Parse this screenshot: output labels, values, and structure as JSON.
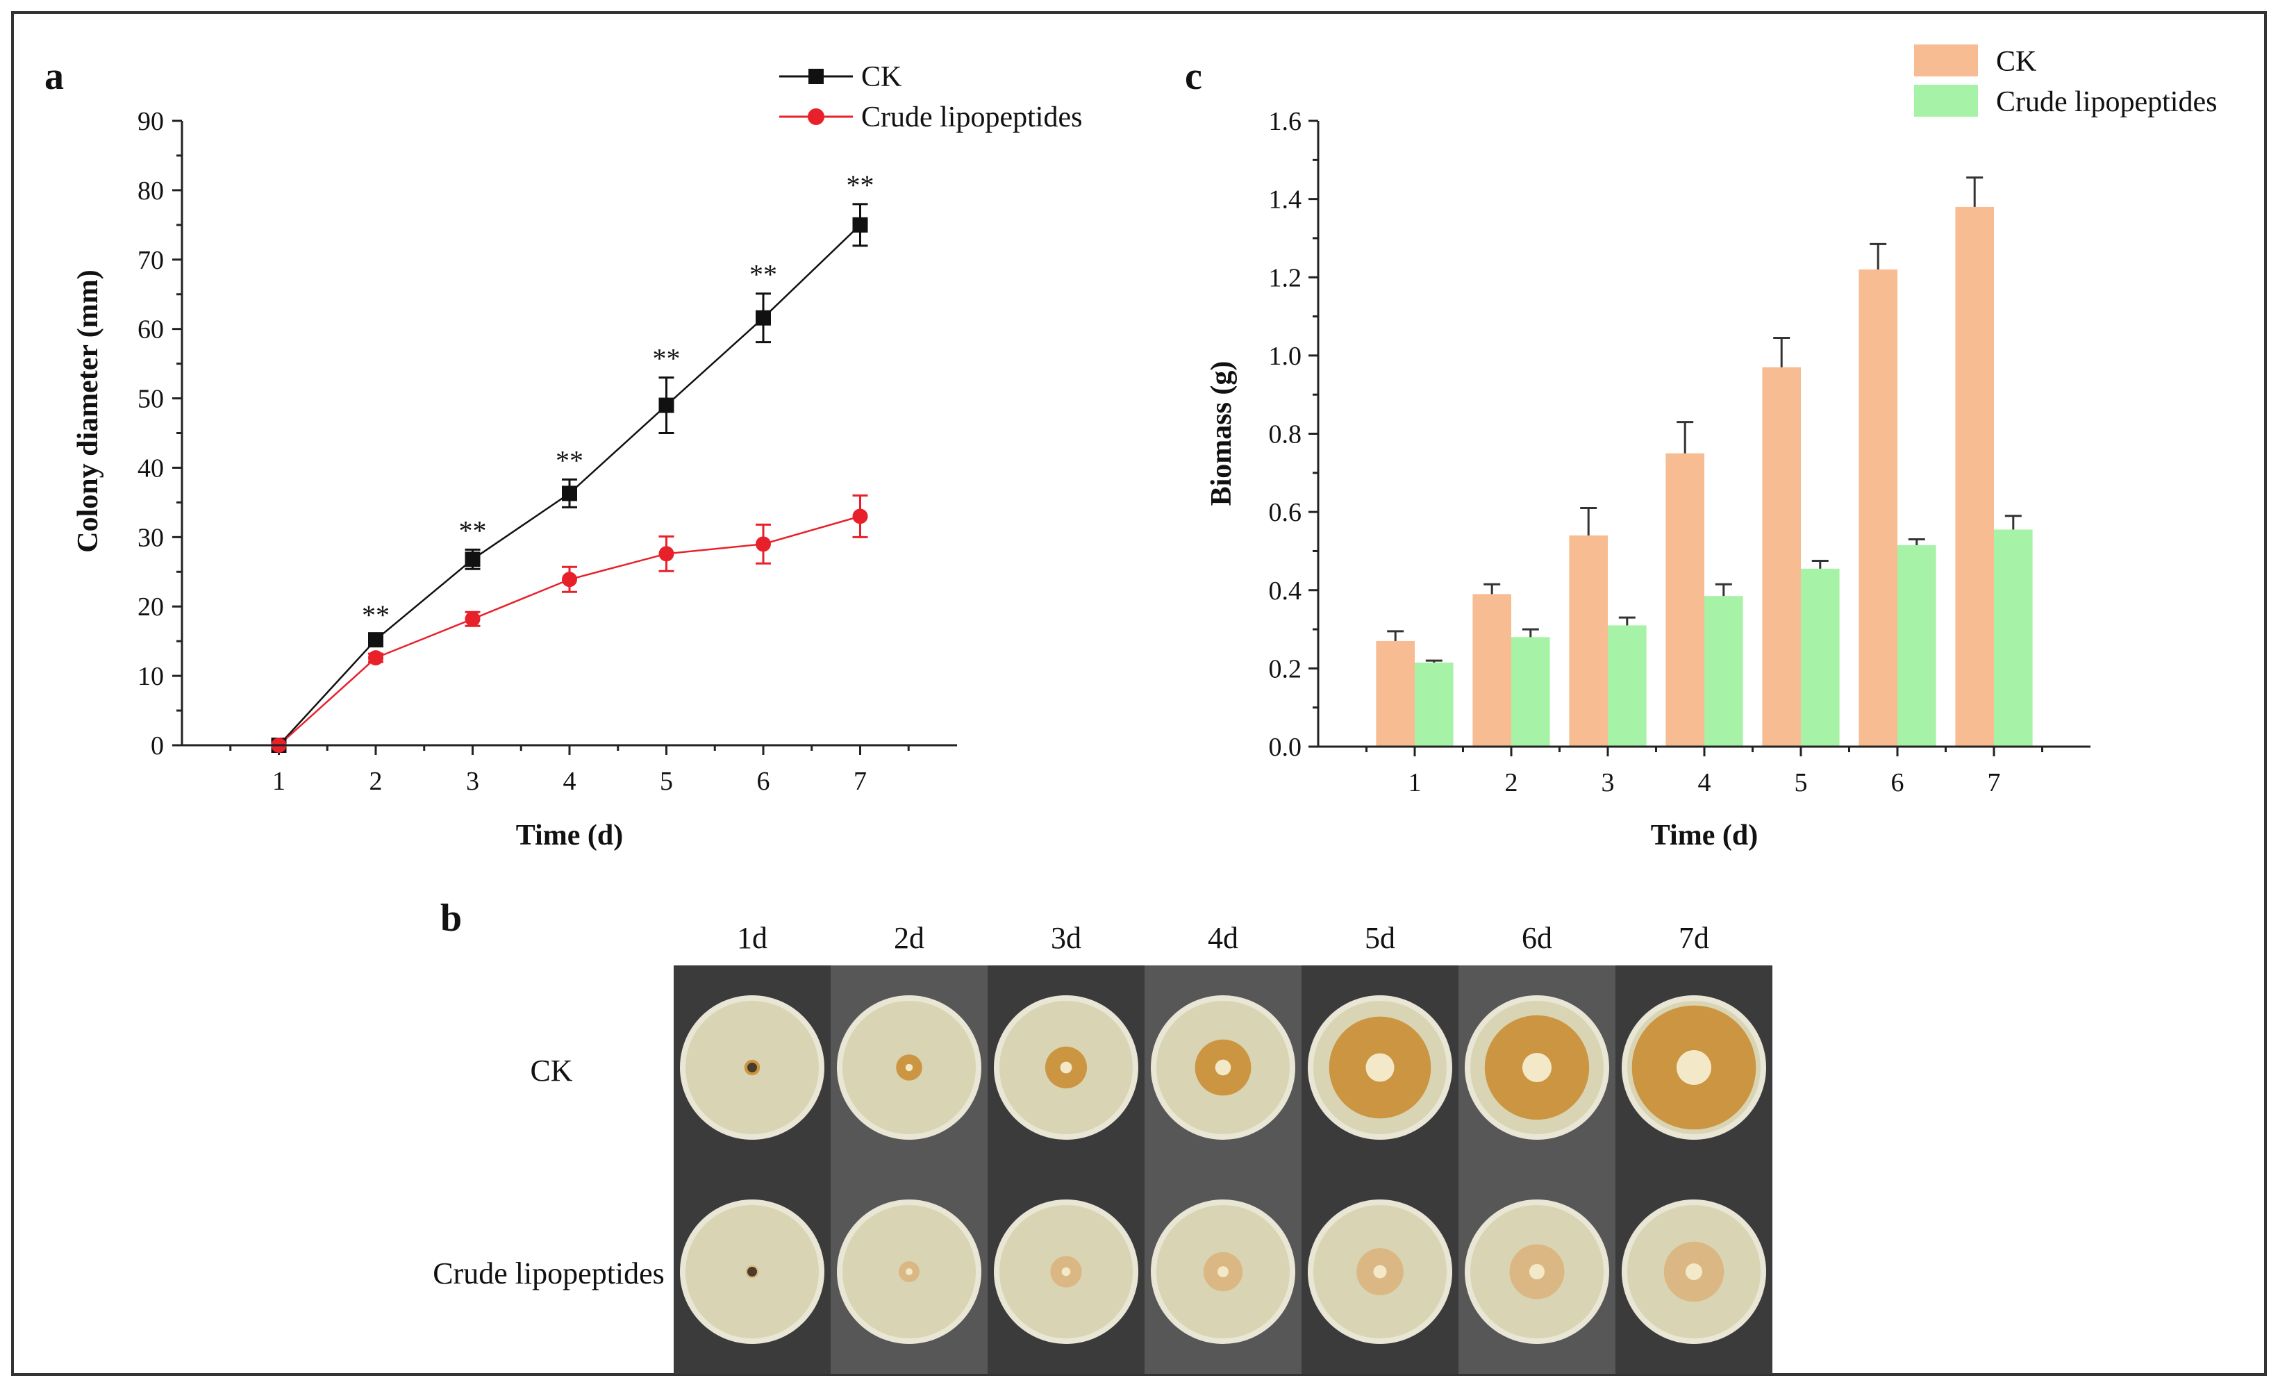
{
  "colors": {
    "ck_line": "#111111",
    "crude_line": "#e8202a",
    "ck_bar": "#f7bc92",
    "crude_bar": "#a6f2a6",
    "frame": "#333333",
    "plate_bg_dark": "#3a3a3a",
    "agar": "#d9d5b4",
    "colony_ck": "#c98a2e",
    "colony_crude": "#d9b27a"
  },
  "panel_a": {
    "letter": "a",
    "chart_data": {
      "type": "line",
      "title": "",
      "xlabel": "Time (d)",
      "ylabel": "Colony diameter (mm)",
      "x": [
        1,
        2,
        3,
        4,
        5,
        6,
        7
      ],
      "x_tick_labels": [
        "1",
        "2",
        "3",
        "4",
        "5",
        "6",
        "7"
      ],
      "xlim": [
        0,
        8
      ],
      "ylim": [
        0,
        90
      ],
      "y_ticks": [
        0,
        10,
        20,
        30,
        40,
        50,
        60,
        70,
        80,
        90
      ],
      "y_tick_labels": [
        "0",
        "10",
        "20",
        "30",
        "40",
        "50",
        "60",
        "70",
        "80",
        "90"
      ],
      "legend_position": "top-right",
      "series": [
        {
          "name": "CK",
          "marker": "square",
          "values": [
            0,
            15.2,
            26.8,
            36.3,
            49.0,
            61.6,
            75.0
          ],
          "errors": [
            0,
            0.8,
            1.4,
            2.0,
            4.0,
            3.5,
            3.0
          ]
        },
        {
          "name": "Crude lipopeptides",
          "marker": "circle",
          "values": [
            0,
            12.6,
            18.2,
            23.9,
            27.6,
            29.0,
            33.0
          ],
          "errors": [
            0,
            0.6,
            1.0,
            1.8,
            2.5,
            2.8,
            3.0
          ]
        }
      ],
      "significance": [
        {
          "x": 2,
          "label": "**"
        },
        {
          "x": 3,
          "label": "**"
        },
        {
          "x": 4,
          "label": "**"
        },
        {
          "x": 5,
          "label": "**"
        },
        {
          "x": 6,
          "label": "**"
        },
        {
          "x": 7,
          "label": "**"
        }
      ]
    }
  },
  "panel_c": {
    "letter": "c",
    "chart_data": {
      "type": "bar",
      "title": "",
      "xlabel": "Time (d)",
      "ylabel": "Biomass (g)",
      "categories": [
        "1",
        "2",
        "3",
        "4",
        "5",
        "6",
        "7"
      ],
      "ylim": [
        0,
        1.6
      ],
      "y_ticks": [
        0,
        0.2,
        0.4,
        0.6,
        0.8,
        1.0,
        1.2,
        1.4,
        1.6
      ],
      "y_tick_labels": [
        "0.0",
        "0.2",
        "0.4",
        "0.6",
        "0.8",
        "1.0",
        "1.2",
        "1.4",
        "1.6"
      ],
      "legend_position": "top-right",
      "series": [
        {
          "name": "CK",
          "values": [
            0.27,
            0.39,
            0.54,
            0.75,
            0.97,
            1.22,
            1.38
          ],
          "errors": [
            0.025,
            0.025,
            0.07,
            0.08,
            0.075,
            0.065,
            0.075
          ]
        },
        {
          "name": "Crude lipopeptides",
          "values": [
            0.215,
            0.28,
            0.31,
            0.385,
            0.455,
            0.515,
            0.555
          ],
          "errors": [
            0.005,
            0.02,
            0.02,
            0.03,
            0.02,
            0.015,
            0.035
          ]
        }
      ]
    }
  },
  "panel_b": {
    "letter": "b",
    "days": [
      "1d",
      "2d",
      "3d",
      "4d",
      "5d",
      "6d",
      "7d"
    ],
    "rows": [
      {
        "label": "CK",
        "colony_sizes_relative": [
          0.12,
          0.2,
          0.32,
          0.43,
          0.78,
          0.8,
          0.95
        ]
      },
      {
        "label": "Crude lipopeptides",
        "colony_sizes_relative": [
          0.1,
          0.16,
          0.24,
          0.3,
          0.36,
          0.42,
          0.46
        ]
      }
    ]
  }
}
